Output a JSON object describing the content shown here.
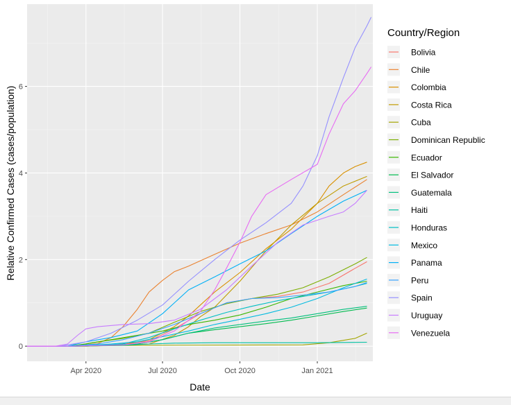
{
  "chart_data": {
    "type": "line",
    "xlabel": "Date",
    "ylabel": "Relative Confirmed Cases (cases/population)",
    "xlim": [
      "2020-01-22",
      "2021-03-08"
    ],
    "ylim": [
      -0.35,
      7.9
    ],
    "x_ticks": [
      {
        "date": "2020-04-01",
        "label": "Apr 2020"
      },
      {
        "date": "2020-07-01",
        "label": "Jul 2020"
      },
      {
        "date": "2020-10-01",
        "label": "Oct 2020"
      },
      {
        "date": "2021-01-01",
        "label": "Jan 2021"
      }
    ],
    "y_ticks": [
      0,
      2,
      4,
      6
    ],
    "grid": true,
    "legend": {
      "title": "Country/Region",
      "position": "right"
    },
    "series": [
      {
        "name": "Bolivia",
        "color": "#F8766D",
        "x": [
          "2020-03-15",
          "2020-05-01",
          "2020-06-15",
          "2020-07-15",
          "2020-08-15",
          "2020-09-15",
          "2020-10-15",
          "2020-11-15",
          "2020-12-15",
          "2021-01-15",
          "2021-02-15",
          "2021-03-01"
        ],
        "y": [
          0,
          0.03,
          0.12,
          0.4,
          0.75,
          1.0,
          1.1,
          1.15,
          1.25,
          1.45,
          1.8,
          1.95
        ]
      },
      {
        "name": "Chile",
        "color": "#EA8331",
        "x": [
          "2020-03-15",
          "2020-04-15",
          "2020-05-01",
          "2020-05-15",
          "2020-06-01",
          "2020-06-15",
          "2020-07-01",
          "2020-07-15",
          "2020-08-01",
          "2020-09-01",
          "2020-10-01",
          "2020-11-01",
          "2020-12-01",
          "2021-01-01",
          "2021-02-01",
          "2021-03-01"
        ],
        "y": [
          0,
          0.06,
          0.2,
          0.45,
          0.85,
          1.25,
          1.52,
          1.72,
          1.85,
          2.12,
          2.38,
          2.6,
          2.8,
          3.1,
          3.5,
          3.85
        ]
      },
      {
        "name": "Colombia",
        "color": "#D89000",
        "x": [
          "2020-04-01",
          "2020-05-15",
          "2020-06-15",
          "2020-07-15",
          "2020-08-01",
          "2020-08-15",
          "2020-09-01",
          "2020-10-01",
          "2020-11-01",
          "2020-12-01",
          "2021-01-01",
          "2021-01-15",
          "2021-02-01",
          "2021-02-15",
          "2021-03-01"
        ],
        "y": [
          0,
          0.03,
          0.15,
          0.45,
          0.7,
          0.95,
          1.25,
          1.7,
          2.25,
          2.7,
          3.3,
          3.7,
          4.0,
          4.15,
          4.25
        ]
      },
      {
        "name": "Costa Rica",
        "color": "#C09B00",
        "x": [
          "2020-04-01",
          "2020-06-15",
          "2020-07-15",
          "2020-08-01",
          "2020-08-15",
          "2020-09-01",
          "2020-10-01",
          "2020-11-01",
          "2020-12-01",
          "2021-01-01",
          "2021-02-01",
          "2021-03-01"
        ],
        "y": [
          0,
          0.05,
          0.25,
          0.45,
          0.68,
          0.9,
          1.5,
          2.2,
          2.8,
          3.3,
          3.7,
          3.92
        ]
      },
      {
        "name": "Cuba",
        "color": "#A3A500",
        "x": [
          "2020-03-15",
          "2020-06-01",
          "2020-12-15",
          "2021-01-15",
          "2021-02-15",
          "2021-03-01"
        ],
        "y": [
          0,
          0.02,
          0.03,
          0.08,
          0.18,
          0.3
        ]
      },
      {
        "name": "Dominican Republic",
        "color": "#7CAE00",
        "x": [
          "2020-03-15",
          "2020-04-15",
          "2020-05-15",
          "2020-06-15",
          "2020-07-15",
          "2020-08-15",
          "2020-09-15",
          "2020-10-15",
          "2020-11-15",
          "2020-12-15",
          "2021-01-15",
          "2021-02-15",
          "2021-03-01"
        ],
        "y": [
          0,
          0.1,
          0.18,
          0.3,
          0.55,
          0.8,
          0.98,
          1.1,
          1.2,
          1.35,
          1.6,
          1.9,
          2.05
        ]
      },
      {
        "name": "Ecuador",
        "color": "#39B600",
        "x": [
          "2020-03-10",
          "2020-04-01",
          "2020-05-01",
          "2020-06-01",
          "2020-07-01",
          "2020-08-01",
          "2020-09-01",
          "2020-10-01",
          "2020-11-01",
          "2020-12-01",
          "2021-01-01",
          "2021-02-01",
          "2021-03-01"
        ],
        "y": [
          0,
          0.05,
          0.15,
          0.25,
          0.35,
          0.5,
          0.6,
          0.72,
          0.9,
          1.1,
          1.25,
          1.4,
          1.5
        ]
      },
      {
        "name": "El Salvador",
        "color": "#00BB4E",
        "x": [
          "2020-03-20",
          "2020-06-01",
          "2020-07-01",
          "2020-08-01",
          "2020-09-01",
          "2020-10-01",
          "2020-11-01",
          "2020-12-01",
          "2021-01-01",
          "2021-02-01",
          "2021-03-01"
        ],
        "y": [
          0,
          0.05,
          0.15,
          0.3,
          0.38,
          0.45,
          0.52,
          0.6,
          0.7,
          0.8,
          0.88
        ]
      },
      {
        "name": "Guatemala",
        "color": "#00BF7D",
        "x": [
          "2020-03-20",
          "2020-06-01",
          "2020-07-01",
          "2020-08-01",
          "2020-09-01",
          "2020-10-01",
          "2020-11-01",
          "2020-12-01",
          "2021-01-01",
          "2021-02-01",
          "2021-03-01"
        ],
        "y": [
          0,
          0.05,
          0.15,
          0.3,
          0.42,
          0.5,
          0.58,
          0.65,
          0.75,
          0.85,
          0.92
        ]
      },
      {
        "name": "Haiti",
        "color": "#00C1A3",
        "x": [
          "2020-03-20",
          "2020-05-15",
          "2020-06-15",
          "2020-07-15",
          "2020-09-01",
          "2021-01-01",
          "2021-03-01"
        ],
        "y": [
          0,
          0.02,
          0.05,
          0.07,
          0.08,
          0.08,
          0.09
        ]
      },
      {
        "name": "Honduras",
        "color": "#00BFC4",
        "x": [
          "2020-03-15",
          "2020-05-15",
          "2020-06-15",
          "2020-07-15",
          "2020-08-15",
          "2020-09-15",
          "2020-10-15",
          "2020-11-15",
          "2020-12-15",
          "2021-01-15",
          "2021-02-15",
          "2021-03-01"
        ],
        "y": [
          0,
          0.05,
          0.2,
          0.4,
          0.6,
          0.78,
          0.92,
          1.05,
          1.15,
          1.25,
          1.38,
          1.45
        ]
      },
      {
        "name": "Mexico",
        "color": "#00BAE0",
        "x": [
          "2020-03-15",
          "2020-05-01",
          "2020-06-01",
          "2020-07-01",
          "2020-08-01",
          "2020-09-01",
          "2020-10-01",
          "2020-11-01",
          "2020-12-01",
          "2021-01-01",
          "2021-02-01",
          "2021-03-01"
        ],
        "y": [
          0,
          0.05,
          0.1,
          0.22,
          0.35,
          0.5,
          0.62,
          0.75,
          0.9,
          1.1,
          1.35,
          1.55
        ]
      },
      {
        "name": "Panama",
        "color": "#00B0F6",
        "x": [
          "2020-03-10",
          "2020-04-01",
          "2020-05-01",
          "2020-06-01",
          "2020-07-01",
          "2020-08-01",
          "2020-09-01",
          "2020-10-01",
          "2020-11-01",
          "2020-12-01",
          "2021-01-01",
          "2021-02-01",
          "2021-03-01"
        ],
        "y": [
          0,
          0.1,
          0.2,
          0.35,
          0.75,
          1.3,
          1.6,
          1.9,
          2.2,
          2.6,
          3.0,
          3.35,
          3.6
        ]
      },
      {
        "name": "Peru",
        "color": "#35A2FF",
        "x": [
          "2020-03-10",
          "2020-04-15",
          "2020-05-15",
          "2020-06-15",
          "2020-07-15",
          "2020-08-15",
          "2020-09-15",
          "2020-10-15",
          "2020-11-15",
          "2020-12-15",
          "2021-01-15",
          "2021-02-15",
          "2021-03-01"
        ],
        "y": [
          0,
          0.05,
          0.15,
          0.3,
          0.5,
          0.75,
          1.0,
          1.1,
          1.12,
          1.18,
          1.25,
          1.38,
          1.47
        ]
      },
      {
        "name": "Spain",
        "color": "#9590FF",
        "x": [
          "2020-03-01",
          "2020-04-01",
          "2020-05-01",
          "2020-06-01",
          "2020-07-01",
          "2020-08-01",
          "2020-09-01",
          "2020-10-01",
          "2020-11-01",
          "2020-12-01",
          "2020-12-15",
          "2021-01-01",
          "2021-01-15",
          "2021-02-01",
          "2021-02-15",
          "2021-03-01",
          "2021-03-06"
        ],
        "y": [
          0,
          0.1,
          0.3,
          0.6,
          0.95,
          1.5,
          2.0,
          2.45,
          2.85,
          3.3,
          3.7,
          4.4,
          5.3,
          6.2,
          6.9,
          7.4,
          7.6
        ]
      },
      {
        "name": "Uruguay",
        "color": "#C77CFF",
        "x": [
          "2020-02-25",
          "2020-03-10",
          "2020-03-22",
          "2020-04-01",
          "2020-04-15",
          "2020-05-15",
          "2020-06-15",
          "2020-07-15",
          "2020-08-15",
          "2020-09-15",
          "2020-10-15",
          "2020-11-15",
          "2020-12-15",
          "2021-01-15",
          "2021-02-01",
          "2021-02-15",
          "2021-03-01"
        ],
        "y": [
          0,
          0.05,
          0.25,
          0.4,
          0.45,
          0.5,
          0.52,
          0.6,
          0.85,
          1.3,
          1.85,
          2.4,
          2.8,
          3.0,
          3.1,
          3.3,
          3.6
        ]
      },
      {
        "name": "Venezuela",
        "color": "#E76BF3",
        "x": [
          "2020-03-15",
          "2020-05-15",
          "2020-06-15",
          "2020-07-15",
          "2020-08-15",
          "2020-09-01",
          "2020-09-15",
          "2020-10-01",
          "2020-10-15",
          "2020-11-01",
          "2020-12-01",
          "2021-01-01",
          "2021-01-15",
          "2021-02-01",
          "2021-02-15",
          "2021-03-01",
          "2021-03-06"
        ],
        "y": [
          0,
          0.03,
          0.1,
          0.35,
          0.8,
          1.3,
          1.8,
          2.4,
          3.0,
          3.5,
          3.85,
          4.2,
          4.9,
          5.6,
          5.9,
          6.3,
          6.45
        ]
      }
    ]
  }
}
